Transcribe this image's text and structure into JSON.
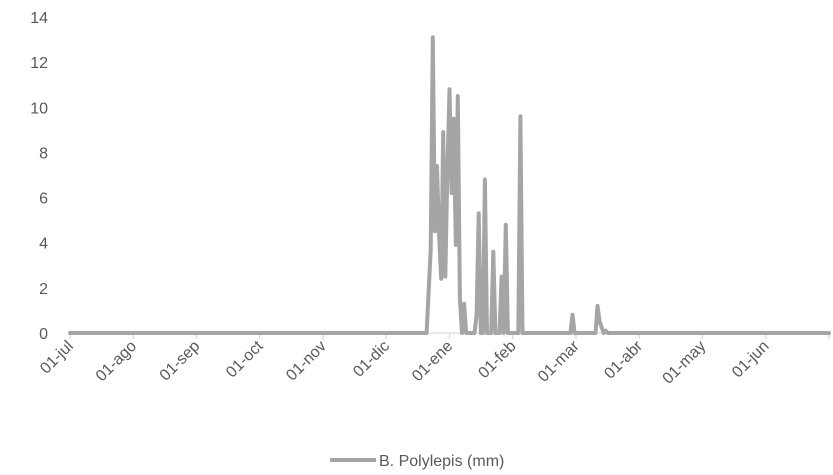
{
  "chart_data": {
    "type": "line",
    "title": "",
    "xlabel": "",
    "ylabel": "",
    "ylim": [
      0,
      14
    ],
    "yticks": [
      0,
      2,
      4,
      6,
      8,
      10,
      12,
      14
    ],
    "xlim": [
      0,
      364
    ],
    "x_tick_labels": [
      "01-jul",
      "01-ago",
      "01-sep",
      "01-oct",
      "01-nov",
      "01-dic",
      "01-ene",
      "01-feb",
      "01-mar",
      "01-abr",
      "01-may",
      "01-jun"
    ],
    "grid": false,
    "legend_position": "bottom",
    "colors": {
      "series": "#a5a5a5",
      "axis": "#d9d9d9",
      "text": "#595959"
    },
    "series": [
      {
        "name": "B. Polylepis (mm)",
        "x": [
          0,
          171,
          173,
          174,
          175,
          176,
          177,
          178,
          179,
          180,
          181,
          182,
          183,
          184,
          185,
          186,
          187,
          188,
          189,
          190,
          191,
          192,
          193,
          194,
          195,
          196,
          197,
          198,
          199,
          200,
          201,
          202,
          203,
          204,
          205,
          206,
          207,
          208,
          209,
          210,
          211,
          212,
          213,
          214,
          215,
          216,
          217,
          218,
          219,
          220,
          221,
          222,
          223,
          224,
          225,
          226,
          227,
          228,
          229,
          230,
          231,
          232,
          233,
          234,
          240,
          241,
          242,
          243,
          252,
          253,
          254,
          256,
          257,
          258,
          364
        ],
        "y": [
          0,
          0,
          3.7,
          13.1,
          4.5,
          7.4,
          4.3,
          2.4,
          8.9,
          2.5,
          7.2,
          10.8,
          6.2,
          9.5,
          3.9,
          10.5,
          1.5,
          0,
          1.3,
          0,
          0,
          0,
          0,
          0,
          0.8,
          5.3,
          0,
          0,
          6.8,
          0,
          0,
          0,
          3.6,
          0,
          0,
          0,
          2.5,
          0,
          4.8,
          0,
          0,
          0,
          0,
          0,
          0,
          9.6,
          0,
          0,
          0,
          0,
          0,
          0,
          0,
          0,
          0,
          0,
          0,
          0,
          0,
          0,
          0,
          0,
          0,
          0,
          0,
          0.8,
          0,
          0,
          0,
          1.2,
          0.5,
          0,
          0.1,
          0,
          0
        ]
      }
    ]
  }
}
